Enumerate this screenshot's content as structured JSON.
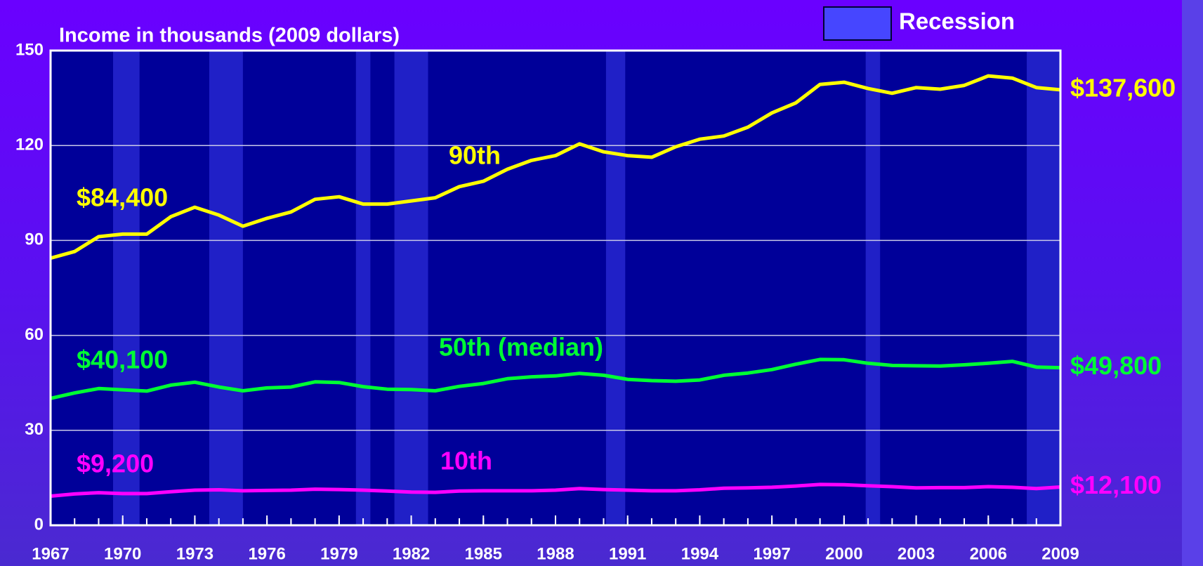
{
  "chart_data": {
    "type": "line",
    "title": "Income in thousands (2009 dollars)",
    "x": [
      1967,
      1968,
      1969,
      1970,
      1971,
      1972,
      1973,
      1974,
      1975,
      1976,
      1977,
      1978,
      1979,
      1980,
      1981,
      1982,
      1983,
      1984,
      1985,
      1986,
      1987,
      1988,
      1989,
      1990,
      1991,
      1992,
      1993,
      1994,
      1995,
      1996,
      1997,
      1998,
      1999,
      2000,
      2001,
      2002,
      2003,
      2004,
      2005,
      2006,
      2007,
      2008,
      2009
    ],
    "xlim": [
      1967,
      2009
    ],
    "xticks": [
      1967,
      1970,
      1973,
      1976,
      1979,
      1982,
      1985,
      1988,
      1991,
      1994,
      1997,
      2000,
      2003,
      2006,
      2009
    ],
    "ylim": [
      0,
      150
    ],
    "yticks": [
      0,
      30,
      60,
      90,
      120,
      150
    ],
    "grid": true,
    "recession_label": "Recession",
    "recession_color": "#4646ff",
    "recessions": [
      [
        1969.6,
        1970.7
      ],
      [
        1973.6,
        1975.0
      ],
      [
        1979.7,
        1980.3
      ],
      [
        1981.3,
        1982.7
      ],
      [
        1990.1,
        1990.9
      ],
      [
        2000.9,
        2001.5
      ],
      [
        2007.6,
        2009
      ]
    ],
    "series": [
      {
        "name": "90th",
        "color": "#ffff00",
        "values": [
          84.4,
          86.5,
          91.2,
          92,
          92,
          97.5,
          100.5,
          98,
          94.5,
          97,
          99,
          103,
          103.8,
          101.5,
          101.5,
          102.5,
          103.5,
          107,
          108.7,
          112.5,
          115.3,
          116.8,
          120.5,
          118,
          116.8,
          116.3,
          119.6,
          122,
          123,
          125.8,
          130.3,
          133.5,
          139.3,
          140,
          138,
          136.5,
          138.3,
          137.8,
          139,
          142,
          141.3,
          138.3,
          137.6
        ],
        "value_labels": [
          "$84,400",
          null,
          null,
          null,
          null,
          null,
          null,
          null,
          null,
          null,
          null,
          null,
          null,
          null,
          null,
          null,
          null,
          null,
          null,
          null,
          null,
          null,
          null,
          null,
          null,
          null,
          null,
          null,
          null,
          null,
          null,
          null,
          null,
          null,
          null,
          null,
          null,
          null,
          null,
          null,
          null,
          null,
          "$137,600"
        ]
      },
      {
        "name": "50th (median)",
        "color": "#00ff33",
        "values": [
          40.1,
          41.8,
          43.2,
          42.8,
          42.4,
          44.3,
          45.2,
          43.7,
          42.5,
          43.4,
          43.7,
          45.3,
          45.1,
          43.8,
          43,
          42.9,
          42.5,
          43.9,
          44.8,
          46.3,
          46.9,
          47.2,
          48,
          47.4,
          46.1,
          45.7,
          45.5,
          45.9,
          47.4,
          48.1,
          49.2,
          50.9,
          52.4,
          52.3,
          51.2,
          50.5,
          50.4,
          50.3,
          50.7,
          51.2,
          51.8,
          50,
          49.8
        ],
        "value_labels": [
          "$40,100",
          null,
          null,
          null,
          null,
          null,
          null,
          null,
          null,
          null,
          null,
          null,
          null,
          null,
          null,
          null,
          null,
          null,
          null,
          null,
          null,
          null,
          null,
          null,
          null,
          null,
          null,
          null,
          null,
          null,
          null,
          null,
          null,
          null,
          null,
          null,
          null,
          null,
          null,
          null,
          null,
          null,
          "$49,800"
        ]
      },
      {
        "name": "10th",
        "color": "#ff00ff",
        "values": [
          9.2,
          9.9,
          10.3,
          10,
          10,
          10.6,
          11.1,
          11.2,
          10.9,
          11,
          11.1,
          11.4,
          11.3,
          11.1,
          10.8,
          10.5,
          10.4,
          10.8,
          10.9,
          10.9,
          10.9,
          11.1,
          11.6,
          11.3,
          11.1,
          10.9,
          10.9,
          11.2,
          11.7,
          11.8,
          12,
          12.4,
          12.9,
          12.8,
          12.5,
          12.2,
          11.8,
          11.9,
          11.9,
          12.2,
          12,
          11.6,
          12.1
        ],
        "value_labels": [
          "$9,200",
          null,
          null,
          null,
          null,
          null,
          null,
          null,
          null,
          null,
          null,
          null,
          null,
          null,
          null,
          null,
          null,
          null,
          null,
          null,
          null,
          null,
          null,
          null,
          null,
          null,
          null,
          null,
          null,
          null,
          null,
          null,
          null,
          null,
          null,
          null,
          null,
          null,
          null,
          null,
          null,
          null,
          "$12,100"
        ]
      }
    ]
  }
}
